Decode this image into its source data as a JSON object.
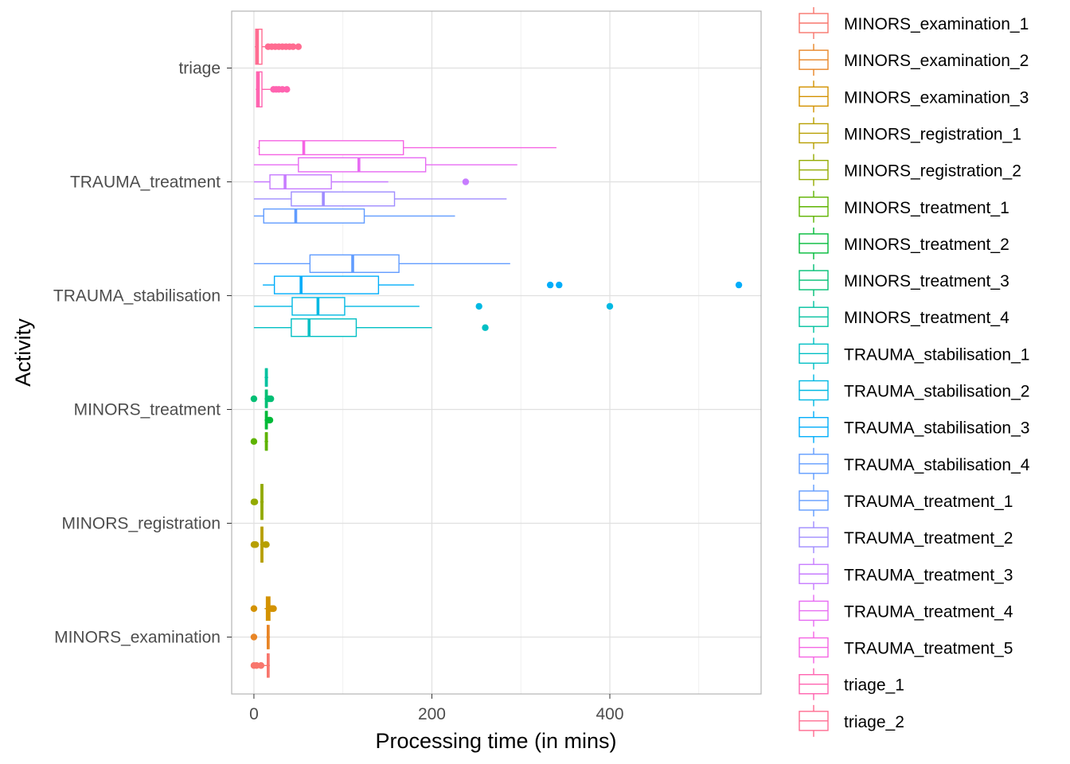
{
  "chart_data": {
    "type": "boxplot",
    "orientation": "horizontal",
    "title": "",
    "xlabel": "Processing time (in mins)",
    "ylabel": "Activity",
    "xlim": [
      -25,
      570
    ],
    "x_ticks": [
      0,
      200,
      400
    ],
    "grid": true,
    "legend_position": "right",
    "categories": [
      "triage",
      "TRAUMA_treatment",
      "TRAUMA_stabilisation",
      "MINORS_treatment",
      "MINORS_registration",
      "MINORS_examination"
    ],
    "series": [
      {
        "name": "MINORS_examination_1",
        "group": "MINORS_examination",
        "color": "#F8766D",
        "whisker_low": 0,
        "q1": 15,
        "median": 16,
        "q3": 17,
        "whisker_high": 18,
        "outliers": [
          0,
          3,
          8
        ]
      },
      {
        "name": "MINORS_examination_2",
        "group": "MINORS_examination",
        "color": "#E88526",
        "whisker_low": 14,
        "q1": 15,
        "median": 16,
        "q3": 17,
        "whisker_high": 18,
        "outliers": [
          0
        ]
      },
      {
        "name": "MINORS_examination_3",
        "group": "MINORS_examination",
        "color": "#D39200",
        "whisker_low": 12,
        "q1": 14,
        "median": 16,
        "q3": 18,
        "whisker_high": 20,
        "outliers": [
          0,
          20,
          22
        ]
      },
      {
        "name": "MINORS_registration_1",
        "group": "MINORS_registration",
        "color": "#B79F00",
        "whisker_low": 7,
        "q1": 8,
        "median": 9,
        "q3": 10,
        "whisker_high": 11,
        "outliers": [
          0,
          1,
          2,
          13,
          14
        ]
      },
      {
        "name": "MINORS_registration_2",
        "group": "MINORS_registration",
        "color": "#93AA00",
        "whisker_low": 7,
        "q1": 8,
        "median": 9,
        "q3": 10,
        "whisker_high": 11,
        "outliers": [
          0,
          1
        ]
      },
      {
        "name": "MINORS_treatment_1",
        "group": "MINORS_treatment",
        "color": "#5EB300",
        "whisker_low": 12,
        "q1": 13,
        "median": 14,
        "q3": 15,
        "whisker_high": 16,
        "outliers": [
          0
        ]
      },
      {
        "name": "MINORS_treatment_2",
        "group": "MINORS_treatment",
        "color": "#00BA38",
        "whisker_low": 12,
        "q1": 13,
        "median": 14,
        "q3": 15,
        "whisker_high": 16,
        "outliers": [
          17,
          18
        ]
      },
      {
        "name": "MINORS_treatment_3",
        "group": "MINORS_treatment",
        "color": "#00BF74",
        "whisker_low": 12,
        "q1": 13,
        "median": 14,
        "q3": 15,
        "whisker_high": 16,
        "outliers": [
          0,
          17,
          19
        ]
      },
      {
        "name": "MINORS_treatment_4",
        "group": "MINORS_treatment",
        "color": "#00C19F",
        "whisker_low": 12,
        "q1": 13,
        "median": 14,
        "q3": 15,
        "whisker_high": 16,
        "outliers": []
      },
      {
        "name": "TRAUMA_stabilisation_1",
        "group": "TRAUMA_stabilisation",
        "color": "#00BFC4",
        "whisker_low": 0,
        "q1": 42,
        "median": 62,
        "q3": 115,
        "whisker_high": 200,
        "outliers": [
          260
        ]
      },
      {
        "name": "TRAUMA_stabilisation_2",
        "group": "TRAUMA_stabilisation",
        "color": "#00B9E3",
        "whisker_low": 0,
        "q1": 43,
        "median": 72,
        "q3": 102,
        "whisker_high": 186,
        "outliers": [
          253,
          400
        ]
      },
      {
        "name": "TRAUMA_stabilisation_3",
        "group": "TRAUMA_stabilisation",
        "color": "#00ADFA",
        "whisker_low": 10,
        "q1": 23,
        "median": 53,
        "q3": 140,
        "whisker_high": 180,
        "outliers": [
          333,
          343,
          545
        ]
      },
      {
        "name": "TRAUMA_stabilisation_4",
        "group": "TRAUMA_stabilisation",
        "color": "#619CFF",
        "whisker_low": 0,
        "q1": 63,
        "median": 111,
        "q3": 163,
        "whisker_high": 288,
        "outliers": []
      },
      {
        "name": "TRAUMA_treatment_1",
        "group": "TRAUMA_treatment",
        "color": "#619CFF",
        "whisker_low": 0,
        "q1": 11,
        "median": 47,
        "q3": 124,
        "whisker_high": 226,
        "outliers": []
      },
      {
        "name": "TRAUMA_treatment_2",
        "group": "TRAUMA_treatment",
        "color": "#9F8CFF",
        "whisker_low": 0,
        "q1": 42,
        "median": 78,
        "q3": 158,
        "whisker_high": 284,
        "outliers": []
      },
      {
        "name": "TRAUMA_treatment_3",
        "group": "TRAUMA_treatment",
        "color": "#C77CFF",
        "whisker_low": 0,
        "q1": 18,
        "median": 35,
        "q3": 87,
        "whisker_high": 151,
        "outliers": [
          238
        ]
      },
      {
        "name": "TRAUMA_treatment_4",
        "group": "TRAUMA_treatment",
        "color": "#E76BF3",
        "whisker_low": 0,
        "q1": 50,
        "median": 118,
        "q3": 193,
        "whisker_high": 296,
        "outliers": []
      },
      {
        "name": "TRAUMA_treatment_5",
        "group": "TRAUMA_treatment",
        "color": "#F564E3",
        "whisker_low": 4,
        "q1": 6,
        "median": 56,
        "q3": 168,
        "whisker_high": 340,
        "outliers": []
      },
      {
        "name": "triage_1",
        "group": "triage",
        "color": "#FF64B0",
        "whisker_low": 2,
        "q1": 3,
        "median": 5,
        "q3": 9,
        "whisker_high": 20,
        "outliers": [
          22,
          25,
          28,
          32,
          37
        ]
      },
      {
        "name": "triage_2",
        "group": "triage",
        "color": "#FF6C91",
        "whisker_low": 1,
        "q1": 2,
        "median": 4,
        "q3": 9,
        "whisker_high": 14,
        "outliers": [
          16,
          20,
          24,
          28,
          32,
          36,
          40,
          44,
          50
        ]
      }
    ]
  }
}
